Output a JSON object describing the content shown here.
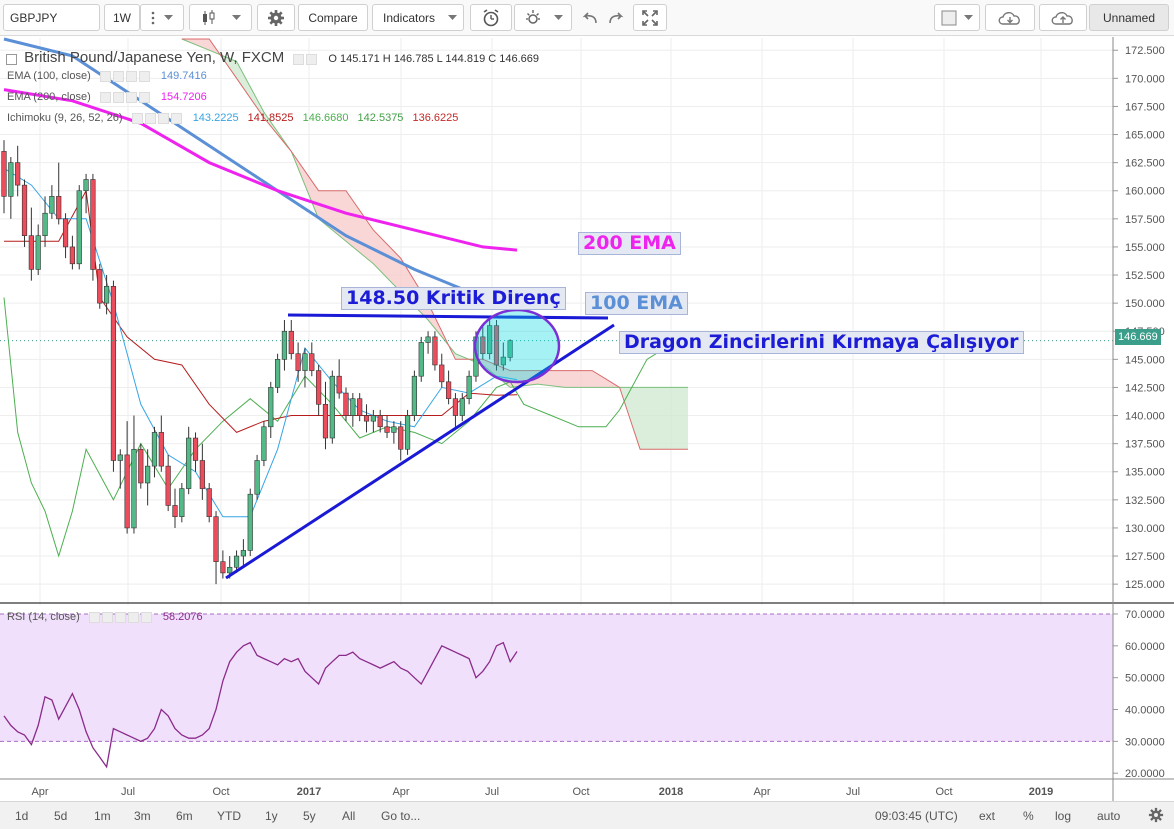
{
  "toolbar": {
    "symbol": "GBPJPY",
    "interval": "1W",
    "compare_label": "Compare",
    "indicators_label": "Indicators",
    "layout_name": "Unnamed"
  },
  "legend": {
    "main": "British Pound/Japanese Yen, W, FXCM",
    "ohlc": {
      "o_label": "O",
      "o": "145.171",
      "h_label": "H",
      "h": "146.785",
      "l_label": "L",
      "l": "144.819",
      "c_label": "C",
      "c": "146.669"
    },
    "ema100": {
      "label": "EMA (100, close)",
      "value": "149.7416"
    },
    "ema200": {
      "label": "EMA (200, close)",
      "value": "154.7206"
    },
    "ichimoku": {
      "label": "Ichimoku (9, 26, 52, 26)",
      "values": [
        "143.2225",
        "141.8525",
        "146.6680",
        "142.5375",
        "136.6225"
      ]
    },
    "rsi": {
      "label": "RSI (14, close)",
      "value": "58.2076"
    }
  },
  "colors": {
    "up": "#53b987",
    "down": "#eb4d5c",
    "ema100": "#5b8fd6",
    "ema200": "#ee23ee",
    "tenkan": "#37a5e6",
    "kijun": "#b71c1c",
    "chikou": "#4caf50",
    "cloud_bear": "#f7c9c9",
    "cloud_bull": "#cfe8cf",
    "rsi_bg": "#f1e0fb",
    "rsi_line": "#8a2b8a",
    "trend": "#1a1ad6",
    "last_price": "#3a9e8a"
  },
  "current_price": "146.669",
  "annotations": {
    "resistance": "148.50 Kritik Direnç",
    "ema100": "100 EMA",
    "ema200": "200 EMA",
    "dragon": "Dragon Zincirlerini Kırmaya Çalışıyor"
  },
  "chart_data": [
    {
      "type": "candlestick",
      "title": "British Pound/Japanese Yen, W, FXCM",
      "ylim": [
        123.5,
        173.5
      ],
      "y_ticks": [
        "172.500",
        "170.000",
        "167.500",
        "165.000",
        "162.500",
        "160.000",
        "157.500",
        "155.000",
        "152.500",
        "150.000",
        "147.500",
        "145.000",
        "142.500",
        "140.000",
        "137.500",
        "135.000",
        "132.500",
        "130.000",
        "127.500",
        "125.000"
      ],
      "x_ticks": [
        "Apr",
        "Jul",
        "Oct",
        "2017",
        "Apr",
        "Jul",
        "Oct",
        "2018",
        "Apr",
        "Jul",
        "Oct",
        "2019"
      ],
      "ohlc": [
        [
          163.5,
          164.5,
          158.0,
          159.5
        ],
        [
          159.5,
          163.0,
          157.5,
          162.5
        ],
        [
          162.5,
          164.0,
          159.5,
          160.5
        ],
        [
          160.5,
          161.0,
          155.0,
          156.0
        ],
        [
          156.0,
          158.5,
          152.0,
          153.0
        ],
        [
          153.0,
          157.0,
          152.5,
          156.0
        ],
        [
          156.0,
          159.5,
          155.0,
          158.0
        ],
        [
          158.0,
          160.5,
          157.5,
          159.5
        ],
        [
          159.5,
          162.5,
          157.0,
          157.5
        ],
        [
          157.5,
          158.0,
          154.0,
          155.0
        ],
        [
          155.0,
          156.0,
          153.0,
          153.5
        ],
        [
          153.5,
          160.5,
          153.0,
          160.0
        ],
        [
          160.0,
          161.5,
          158.0,
          161.0
        ],
        [
          161.0,
          161.5,
          152.0,
          153.0
        ],
        [
          153.0,
          153.5,
          149.5,
          150.0
        ],
        [
          150.0,
          152.5,
          149.0,
          151.5
        ],
        [
          151.5,
          152.0,
          135.0,
          136.0
        ],
        [
          136.0,
          137.0,
          133.5,
          136.5
        ],
        [
          136.5,
          139.5,
          129.5,
          130.0
        ],
        [
          130.0,
          140.0,
          129.5,
          137.0
        ],
        [
          137.0,
          137.5,
          133.5,
          134.0
        ],
        [
          134.0,
          137.0,
          132.0,
          135.5
        ],
        [
          135.5,
          139.0,
          134.5,
          138.5
        ],
        [
          138.5,
          140.0,
          135.0,
          135.5
        ],
        [
          135.5,
          136.5,
          131.5,
          132.0
        ],
        [
          132.0,
          133.5,
          130.0,
          131.0
        ],
        [
          131.0,
          134.0,
          130.5,
          133.5
        ],
        [
          133.5,
          139.0,
          133.0,
          138.0
        ],
        [
          138.0,
          138.5,
          135.0,
          136.0
        ],
        [
          136.0,
          137.5,
          132.5,
          133.5
        ],
        [
          133.5,
          134.0,
          130.5,
          131.0
        ],
        [
          131.0,
          131.5,
          125.0,
          127.0
        ],
        [
          127.0,
          128.0,
          125.5,
          126.0
        ],
        [
          126.0,
          127.5,
          125.5,
          126.5
        ],
        [
          126.5,
          128.0,
          126.0,
          127.5
        ],
        [
          127.5,
          129.0,
          126.5,
          128.0
        ],
        [
          128.0,
          133.5,
          127.5,
          133.0
        ],
        [
          133.0,
          136.5,
          132.5,
          136.0
        ],
        [
          136.0,
          139.5,
          135.5,
          139.0
        ],
        [
          139.0,
          143.0,
          138.0,
          142.5
        ],
        [
          142.5,
          145.5,
          142.0,
          145.0
        ],
        [
          145.0,
          148.5,
          144.0,
          147.5
        ],
        [
          147.5,
          148.5,
          145.0,
          145.5
        ],
        [
          145.5,
          146.5,
          143.0,
          144.0
        ],
        [
          144.0,
          146.0,
          142.5,
          145.5
        ],
        [
          145.5,
          146.5,
          143.5,
          144.0
        ],
        [
          144.0,
          144.5,
          140.0,
          141.0
        ],
        [
          141.0,
          143.0,
          137.0,
          138.0
        ],
        [
          138.0,
          144.0,
          137.5,
          143.5
        ],
        [
          143.5,
          145.0,
          141.5,
          142.0
        ],
        [
          142.0,
          142.5,
          139.5,
          140.0
        ],
        [
          140.0,
          142.0,
          139.0,
          141.5
        ],
        [
          141.5,
          142.0,
          139.5,
          140.0
        ],
        [
          140.0,
          141.0,
          138.5,
          139.5
        ],
        [
          139.5,
          140.5,
          138.5,
          140.0
        ],
        [
          140.0,
          140.5,
          138.5,
          139.0
        ],
        [
          139.0,
          140.0,
          138.0,
          138.5
        ],
        [
          138.5,
          139.5,
          137.5,
          139.0
        ],
        [
          139.0,
          139.5,
          136.0,
          137.0
        ],
        [
          137.0,
          140.5,
          136.5,
          140.0
        ],
        [
          140.0,
          144.0,
          139.5,
          143.5
        ],
        [
          143.5,
          147.0,
          143.0,
          146.5
        ],
        [
          146.5,
          147.5,
          145.5,
          147.0
        ],
        [
          147.0,
          147.5,
          144.0,
          144.5
        ],
        [
          144.5,
          145.5,
          142.5,
          143.0
        ],
        [
          143.0,
          144.0,
          141.0,
          141.5
        ],
        [
          141.5,
          142.0,
          139.0,
          140.0
        ],
        [
          140.0,
          142.0,
          139.5,
          141.5
        ],
        [
          141.5,
          144.0,
          141.0,
          143.5
        ],
        [
          143.5,
          147.5,
          143.0,
          147.0
        ],
        [
          147.0,
          148.0,
          145.0,
          145.5
        ],
        [
          145.5,
          148.5,
          145.0,
          148.0
        ],
        [
          148.0,
          148.5,
          144.0,
          144.5
        ],
        [
          144.5,
          146.5,
          144.0,
          145.2
        ],
        [
          145.171,
          146.785,
          144.819,
          146.669
        ]
      ],
      "ema100": [
        [
          0,
          173.5
        ],
        [
          10,
          172.0
        ],
        [
          20,
          168.0
        ],
        [
          30,
          164.0
        ],
        [
          40,
          160.0
        ],
        [
          50,
          156.0
        ],
        [
          60,
          153.0
        ],
        [
          70,
          150.5
        ],
        [
          75,
          149.74
        ]
      ],
      "ema200": [
        [
          0,
          169.0
        ],
        [
          10,
          168.0
        ],
        [
          20,
          166.0
        ],
        [
          30,
          162.5
        ],
        [
          40,
          160.0
        ],
        [
          50,
          158.0
        ],
        [
          60,
          156.5
        ],
        [
          70,
          155.0
        ],
        [
          75,
          154.72
        ]
      ],
      "ichimoku_cloud_a": [
        [
          26,
          173.5
        ],
        [
          30,
          172.5
        ],
        [
          34,
          171.5
        ],
        [
          38,
          167.0
        ],
        [
          42,
          163.5
        ],
        [
          46,
          157.5
        ],
        [
          50,
          155.5
        ],
        [
          54,
          153.5
        ],
        [
          58,
          151.0
        ],
        [
          62,
          148.5
        ],
        [
          66,
          145.5
        ],
        [
          70,
          144.5
        ],
        [
          74,
          142.5
        ],
        [
          78,
          142.8
        ],
        [
          82,
          142.5
        ],
        [
          86,
          142.5
        ],
        [
          90,
          142.5
        ],
        [
          96,
          142.5
        ],
        [
          100,
          142.5
        ]
      ],
      "ichimoku_cloud_b": [
        [
          26,
          173.5
        ],
        [
          30,
          173.5
        ],
        [
          34,
          170.0
        ],
        [
          38,
          166.5
        ],
        [
          42,
          163.5
        ],
        [
          46,
          160.0
        ],
        [
          50,
          160.0
        ],
        [
          54,
          156.5
        ],
        [
          58,
          154.0
        ],
        [
          62,
          150.0
        ],
        [
          66,
          145.0
        ],
        [
          70,
          145.0
        ],
        [
          74,
          144.0
        ],
        [
          78,
          144.0
        ],
        [
          82,
          144.0
        ],
        [
          86,
          144.0
        ],
        [
          90,
          142.5
        ],
        [
          93,
          137.0
        ],
        [
          96,
          137.0
        ],
        [
          100,
          137.0
        ]
      ],
      "tenkan": [
        [
          0,
          162.0
        ],
        [
          4,
          160.5
        ],
        [
          8,
          157.5
        ],
        [
          12,
          157.5
        ],
        [
          16,
          150.0
        ],
        [
          20,
          141.0
        ],
        [
          24,
          136.5
        ],
        [
          28,
          135.0
        ],
        [
          32,
          131.0
        ],
        [
          36,
          131.0
        ],
        [
          40,
          137.0
        ],
        [
          44,
          146.0
        ],
        [
          48,
          143.0
        ],
        [
          52,
          140.5
        ],
        [
          56,
          139.5
        ],
        [
          60,
          139.0
        ],
        [
          64,
          142.5
        ],
        [
          68,
          142.0
        ],
        [
          72,
          143.5
        ],
        [
          75,
          143.2
        ]
      ],
      "kijun": [
        [
          0,
          155.5
        ],
        [
          8,
          155.5
        ],
        [
          12,
          160.0
        ],
        [
          14,
          150.5
        ],
        [
          18,
          147.0
        ],
        [
          22,
          145.0
        ],
        [
          26,
          144.5
        ],
        [
          30,
          141.0
        ],
        [
          34,
          138.5
        ],
        [
          38,
          139.5
        ],
        [
          42,
          140.0
        ],
        [
          48,
          140.0
        ],
        [
          52,
          140.0
        ],
        [
          56,
          140.0
        ],
        [
          60,
          140.0
        ],
        [
          64,
          140.0
        ],
        [
          68,
          142.0
        ],
        [
          72,
          141.8
        ],
        [
          75,
          141.85
        ]
      ],
      "chikou": [
        [
          0,
          150.5
        ],
        [
          2,
          138.5
        ],
        [
          4,
          134.0
        ],
        [
          6,
          131.5
        ],
        [
          8,
          127.5
        ],
        [
          10,
          131.5
        ],
        [
          12,
          137.0
        ],
        [
          16,
          132.5
        ],
        [
          20,
          137.5
        ],
        [
          24,
          133.5
        ],
        [
          28,
          137.0
        ],
        [
          32,
          139.5
        ],
        [
          36,
          141.5
        ],
        [
          40,
          139.5
        ],
        [
          44,
          143.5
        ],
        [
          48,
          141.0
        ],
        [
          52,
          138.0
        ],
        [
          56,
          139.0
        ],
        [
          60,
          138.5
        ],
        [
          64,
          137.5
        ],
        [
          68,
          139.5
        ],
        [
          72,
          142.5
        ],
        [
          74,
          143.0
        ],
        [
          76,
          141.0
        ],
        [
          80,
          140.0
        ],
        [
          84,
          139.0
        ],
        [
          88,
          139.0
        ],
        [
          90,
          140.5
        ],
        [
          94,
          145.0
        ],
        [
          98,
          146.5
        ],
        [
          100,
          146.5
        ]
      ]
    },
    {
      "type": "line",
      "title": "RSI (14, close)",
      "ylim": [
        18.5,
        72.5
      ],
      "y_ticks": [
        "70.0000",
        "60.0000",
        "50.0000",
        "40.0000",
        "30.0000",
        "20.0000"
      ],
      "band": [
        30,
        70
      ],
      "values": [
        38,
        35,
        33,
        32,
        29,
        35,
        44,
        43,
        37,
        41,
        45,
        40,
        33,
        28,
        25,
        22,
        34,
        33,
        32,
        31,
        30,
        31,
        34,
        40,
        38,
        34,
        32,
        31,
        31,
        32,
        34,
        40,
        49,
        55,
        58,
        60,
        61,
        57,
        56,
        55,
        54,
        56,
        55,
        56,
        52,
        50,
        48,
        53,
        55,
        57,
        57,
        58,
        56,
        55,
        54,
        53,
        54,
        55,
        53,
        52,
        50,
        48,
        52,
        56,
        60,
        59,
        58,
        57,
        56,
        50,
        52,
        55,
        60,
        61,
        55,
        58.2
      ]
    }
  ]
}
